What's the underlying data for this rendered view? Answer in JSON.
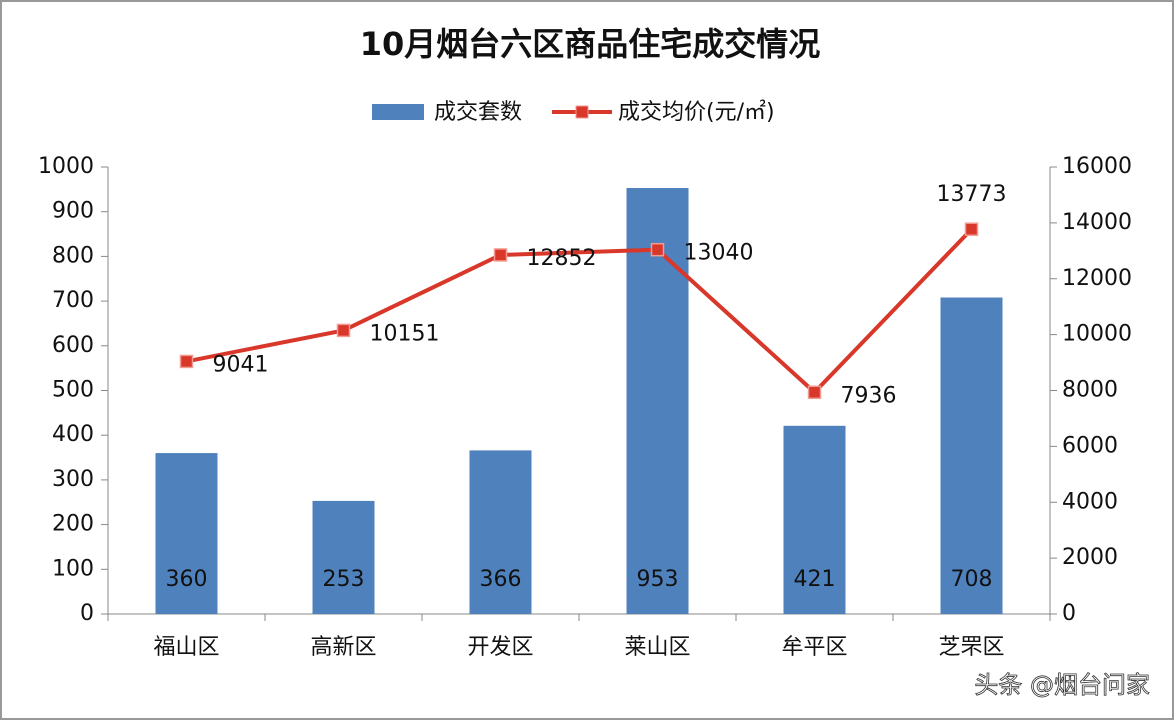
{
  "chart_data": {
    "type": "bar",
    "title": "10月烟台六区商品住宅成交情况",
    "categories": [
      "福山区",
      "高新区",
      "开发区",
      "莱山区",
      "牟平区",
      "芝罘区"
    ],
    "series": [
      {
        "name": "成交套数",
        "type": "bar",
        "color": "#4f81bd",
        "values": [
          360,
          253,
          366,
          953,
          421,
          708
        ]
      },
      {
        "name": "成交均价(元/㎡)",
        "type": "line",
        "axis": "y2",
        "color": "#d8372a",
        "values": [
          9041,
          10151,
          12852,
          13040,
          7936,
          13773
        ]
      }
    ],
    "ylim": [
      0,
      1000
    ],
    "yticks": [
      0,
      100,
      200,
      300,
      400,
      500,
      600,
      700,
      800,
      900,
      1000
    ],
    "y2lim": [
      0,
      16000
    ],
    "y2ticks": [
      0,
      2000,
      4000,
      6000,
      8000,
      10000,
      12000,
      14000,
      16000
    ],
    "legend": "top",
    "watermark": "头条 @烟台问家"
  }
}
